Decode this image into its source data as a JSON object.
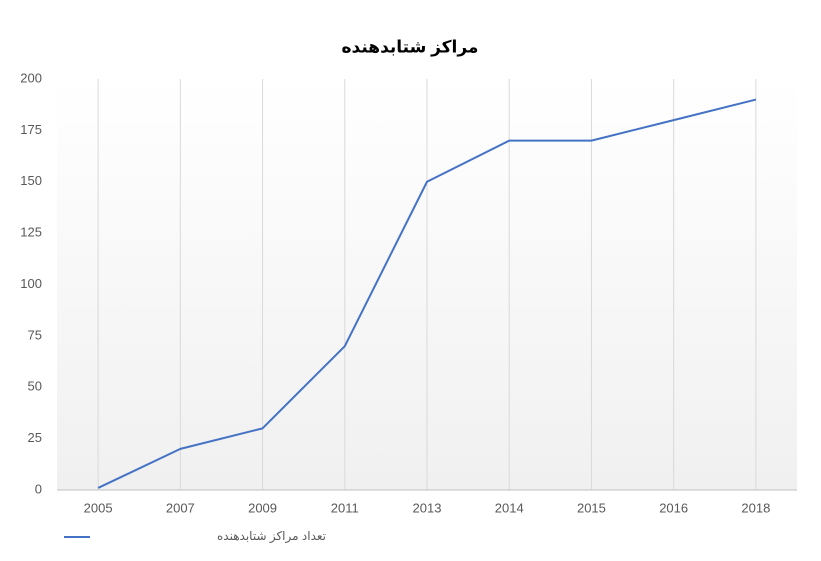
{
  "chart_data": {
    "type": "line",
    "title": "مراکز شتابدهنده",
    "categories": [
      "2005",
      "2007",
      "2009",
      "2011",
      "2013",
      "2014",
      "2015",
      "2016",
      "2018"
    ],
    "series": [
      {
        "name": "تعداد مراکز شتابدهنده",
        "color": "#4472c4",
        "values": [
          1,
          20,
          30,
          70,
          150,
          170,
          170,
          180,
          190
        ]
      }
    ],
    "ylim": [
      0,
      200
    ],
    "yticks": [
      0,
      25,
      50,
      75,
      100,
      125,
      150,
      175,
      200
    ],
    "grid": "x",
    "legend": "bottom-left"
  }
}
